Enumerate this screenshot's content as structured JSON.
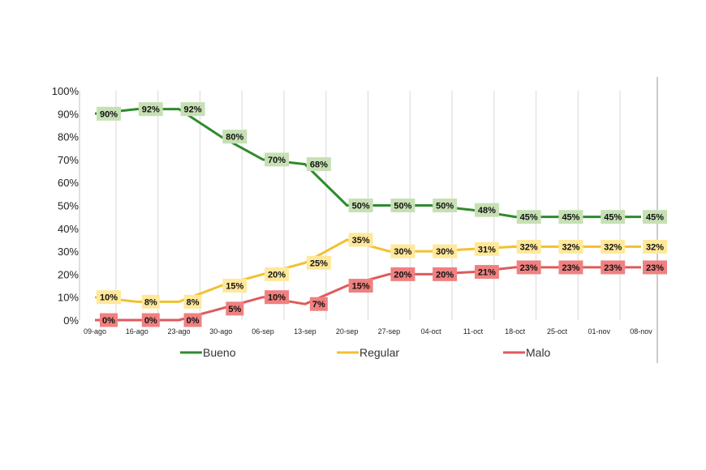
{
  "chart_data": {
    "type": "line",
    "title": "",
    "xlabel": "",
    "ylabel": "",
    "ylim": [
      0,
      100
    ],
    "y_ticks": [
      "0%",
      "10%",
      "20%",
      "30%",
      "40%",
      "50%",
      "60%",
      "70%",
      "80%",
      "90%",
      "100%"
    ],
    "grid": "vertical",
    "legend_position": "bottom",
    "categories": [
      "09-ago",
      "16-ago",
      "23-ago",
      "30-ago",
      "06-sep",
      "13-sep",
      "20-sep",
      "27-sep",
      "04-oct",
      "11-oct",
      "18-oct",
      "25-oct",
      "01-nov",
      "08-nov"
    ],
    "series": [
      {
        "name": "Bueno",
        "color": "#2e8b2e",
        "label_bg": "#c6e0b4",
        "values": [
          90,
          92,
          92,
          80,
          70,
          68,
          50,
          50,
          50,
          48,
          45,
          45,
          45,
          45
        ]
      },
      {
        "name": "Regular",
        "color": "#f2c12e",
        "label_bg": "#ffe89a",
        "values": [
          10,
          8,
          8,
          15,
          20,
          25,
          35,
          30,
          30,
          31,
          32,
          32,
          32,
          32
        ]
      },
      {
        "name": "Malo",
        "color": "#e05a5a",
        "label_bg": "#f08080",
        "values": [
          0,
          0,
          0,
          5,
          10,
          7,
          15,
          20,
          20,
          21,
          23,
          23,
          23,
          23
        ]
      }
    ]
  }
}
